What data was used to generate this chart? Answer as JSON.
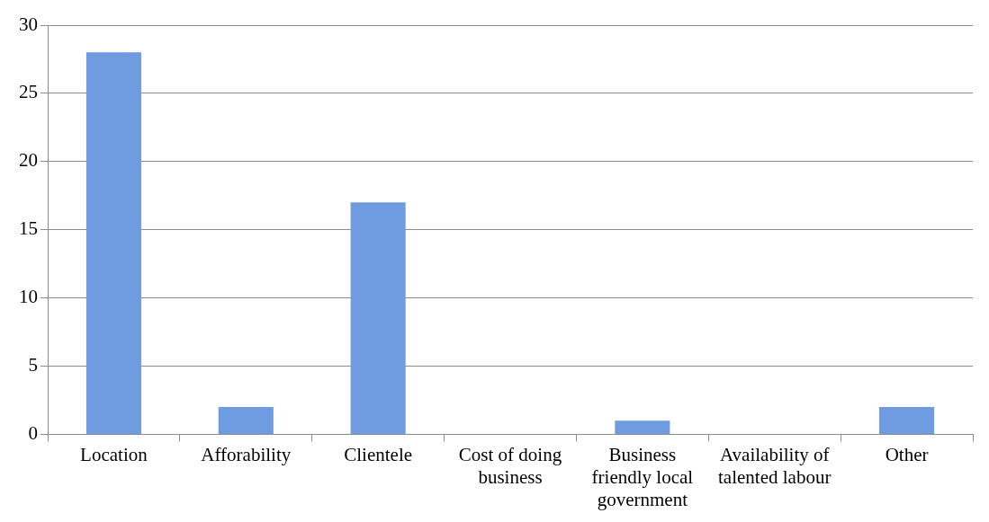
{
  "chart_data": {
    "type": "bar",
    "categories": [
      "Location",
      "Afforability",
      "Clientele",
      "Cost of doing business",
      "Business friendly local government",
      "Availability of talented labour",
      "Other"
    ],
    "values": [
      28,
      2,
      17,
      0,
      1,
      0,
      2
    ],
    "color": "#6f9be0",
    "ylim": [
      0,
      30
    ],
    "yticks": [
      0,
      5,
      10,
      15,
      20,
      25,
      30
    ],
    "grid": "y",
    "legend": false
  }
}
